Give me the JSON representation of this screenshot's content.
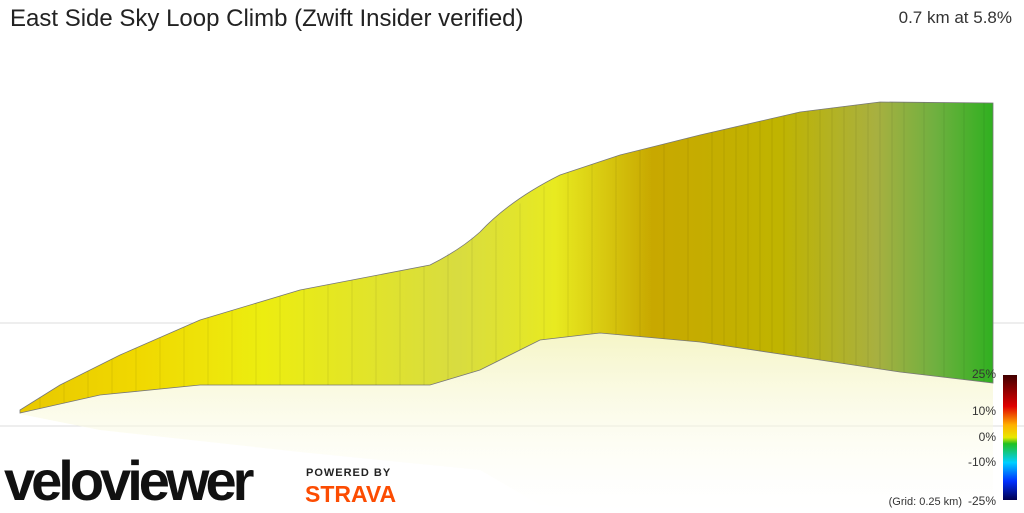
{
  "header": {
    "title": "East Side Sky Loop Climb (Zwift Insider verified)",
    "summary": "0.7 km at 5.8%"
  },
  "legend": {
    "labels": [
      "25%",
      "10%",
      "0%",
      "-10%",
      "-25%"
    ]
  },
  "grid_note": "(Grid: 0.25 km)",
  "branding": {
    "logo": "veloviewer",
    "powered_by": "POWERED BY",
    "strava": "STRAVA"
  }
}
